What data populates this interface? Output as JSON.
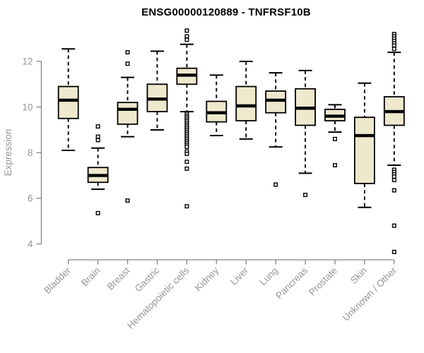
{
  "figure": {
    "title": "ENSG00000120889 - TNFRSF10B"
  },
  "chart_data": {
    "type": "boxplot",
    "title": "ENSG00000120889 - TNFRSF10B",
    "xlabel": "",
    "ylabel": "Expression",
    "y_ticks": [
      4,
      6,
      8,
      10,
      12
    ],
    "ylim": [
      3.4,
      13.5
    ],
    "grid": false,
    "legend": "none",
    "axis_color": "#848484",
    "text_color": "#969696",
    "box_fill_color": "#EEE8CD",
    "box_stroke_color": "#000000",
    "categories": [
      "Bladder",
      "Brain",
      "Breast",
      "Gastric",
      "Hematopoietic cells",
      "Kidney",
      "Liver",
      "Lung",
      "Pancreas",
      "Prostate",
      "Skin",
      "Unknown / Other"
    ],
    "boxes": [
      {
        "category": "Bladder",
        "whisker_low": 8.1,
        "q1": 9.5,
        "median": 10.3,
        "q3": 10.9,
        "whisker_high": 12.55,
        "outliers": []
      },
      {
        "category": "Brain",
        "whisker_low": 6.4,
        "q1": 6.7,
        "median": 7.0,
        "q3": 7.35,
        "whisker_high": 8.2,
        "outliers": [
          9.15,
          8.7,
          8.55,
          5.35
        ]
      },
      {
        "category": "Breast",
        "whisker_low": 8.7,
        "q1": 9.25,
        "median": 9.9,
        "q3": 10.2,
        "whisker_high": 11.3,
        "outliers": [
          12.4,
          11.9,
          5.9
        ]
      },
      {
        "category": "Gastric",
        "whisker_low": 9.0,
        "q1": 9.8,
        "median": 10.35,
        "q3": 11.0,
        "whisker_high": 12.45,
        "outliers": []
      },
      {
        "category": "Hematopoietic cells",
        "whisker_low": 9.8,
        "q1": 11.0,
        "median": 11.4,
        "q3": 11.7,
        "whisker_high": 12.75,
        "outliers": [
          13.35,
          13.1,
          12.95,
          9.7,
          9.62,
          9.54,
          9.46,
          9.38,
          9.3,
          9.22,
          9.14,
          9.06,
          8.98,
          8.9,
          8.82,
          8.74,
          8.66,
          8.58,
          8.5,
          8.42,
          8.34,
          8.26,
          8.05,
          7.95,
          7.6,
          7.3,
          5.65
        ]
      },
      {
        "category": "Kidney",
        "whisker_low": 8.75,
        "q1": 9.35,
        "median": 9.75,
        "q3": 10.25,
        "whisker_high": 11.4,
        "outliers": []
      },
      {
        "category": "Liver",
        "whisker_low": 8.6,
        "q1": 9.4,
        "median": 10.05,
        "q3": 10.9,
        "whisker_high": 12.0,
        "outliers": []
      },
      {
        "category": "Lung",
        "whisker_low": 8.25,
        "q1": 9.75,
        "median": 10.3,
        "q3": 10.7,
        "whisker_high": 11.5,
        "outliers": [
          6.6
        ]
      },
      {
        "category": "Pancreas",
        "whisker_low": 7.1,
        "q1": 9.2,
        "median": 9.95,
        "q3": 10.8,
        "whisker_high": 11.6,
        "outliers": [
          6.15
        ]
      },
      {
        "category": "Prostate",
        "whisker_low": 8.9,
        "q1": 9.4,
        "median": 9.6,
        "q3": 9.9,
        "whisker_high": 10.1,
        "outliers": [
          8.6,
          7.45
        ]
      },
      {
        "category": "Skin",
        "whisker_low": 5.6,
        "q1": 6.65,
        "median": 8.75,
        "q3": 9.55,
        "whisker_high": 11.05,
        "outliers": []
      },
      {
        "category": "Unknown / Other",
        "whisker_low": 7.45,
        "q1": 9.2,
        "median": 9.8,
        "q3": 10.45,
        "whisker_high": 12.4,
        "outliers": [
          13.2,
          13.1,
          13.0,
          12.9,
          12.8,
          12.7,
          12.55,
          7.25,
          7.15,
          7.05,
          6.95,
          6.8,
          6.35,
          4.8,
          3.65
        ]
      }
    ]
  }
}
